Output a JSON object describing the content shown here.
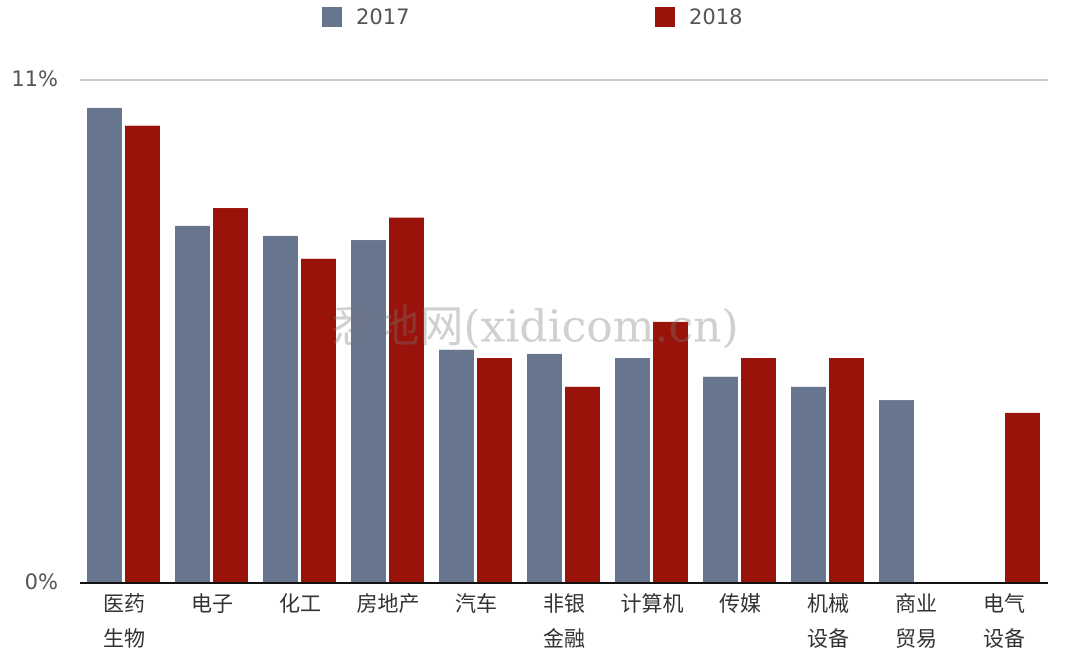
{
  "chart_data": {
    "type": "bar",
    "watermark": "悉地网(xidicom.cn)",
    "categories": [
      [
        "医药",
        "生物"
      ],
      [
        "电子"
      ],
      [
        "化工"
      ],
      [
        "房地产"
      ],
      [
        "汽车"
      ],
      [
        "非银",
        "金融"
      ],
      [
        "计算机"
      ],
      [
        "传媒"
      ],
      [
        "机械",
        "设备"
      ],
      [
        "商业",
        "贸易"
      ],
      [
        "电气",
        "设备"
      ]
    ],
    "series": [
      {
        "name": "2017",
        "color": "#67758f",
        "values": [
          10.39,
          7.81,
          7.59,
          7.5,
          5.1,
          5.01,
          4.92,
          4.51,
          4.29,
          4.0,
          null
        ]
      },
      {
        "name": "2018",
        "color": "#9a130b",
        "values": [
          10.0,
          8.2,
          7.09,
          7.99,
          4.92,
          4.29,
          5.71,
          4.92,
          4.92,
          null,
          3.72
        ]
      }
    ],
    "ylim": [
      0,
      11
    ],
    "yticks": [
      {
        "value": 0,
        "label": "0%"
      },
      {
        "value": 11,
        "label": "11%"
      }
    ],
    "grid": true,
    "legend": "top"
  }
}
